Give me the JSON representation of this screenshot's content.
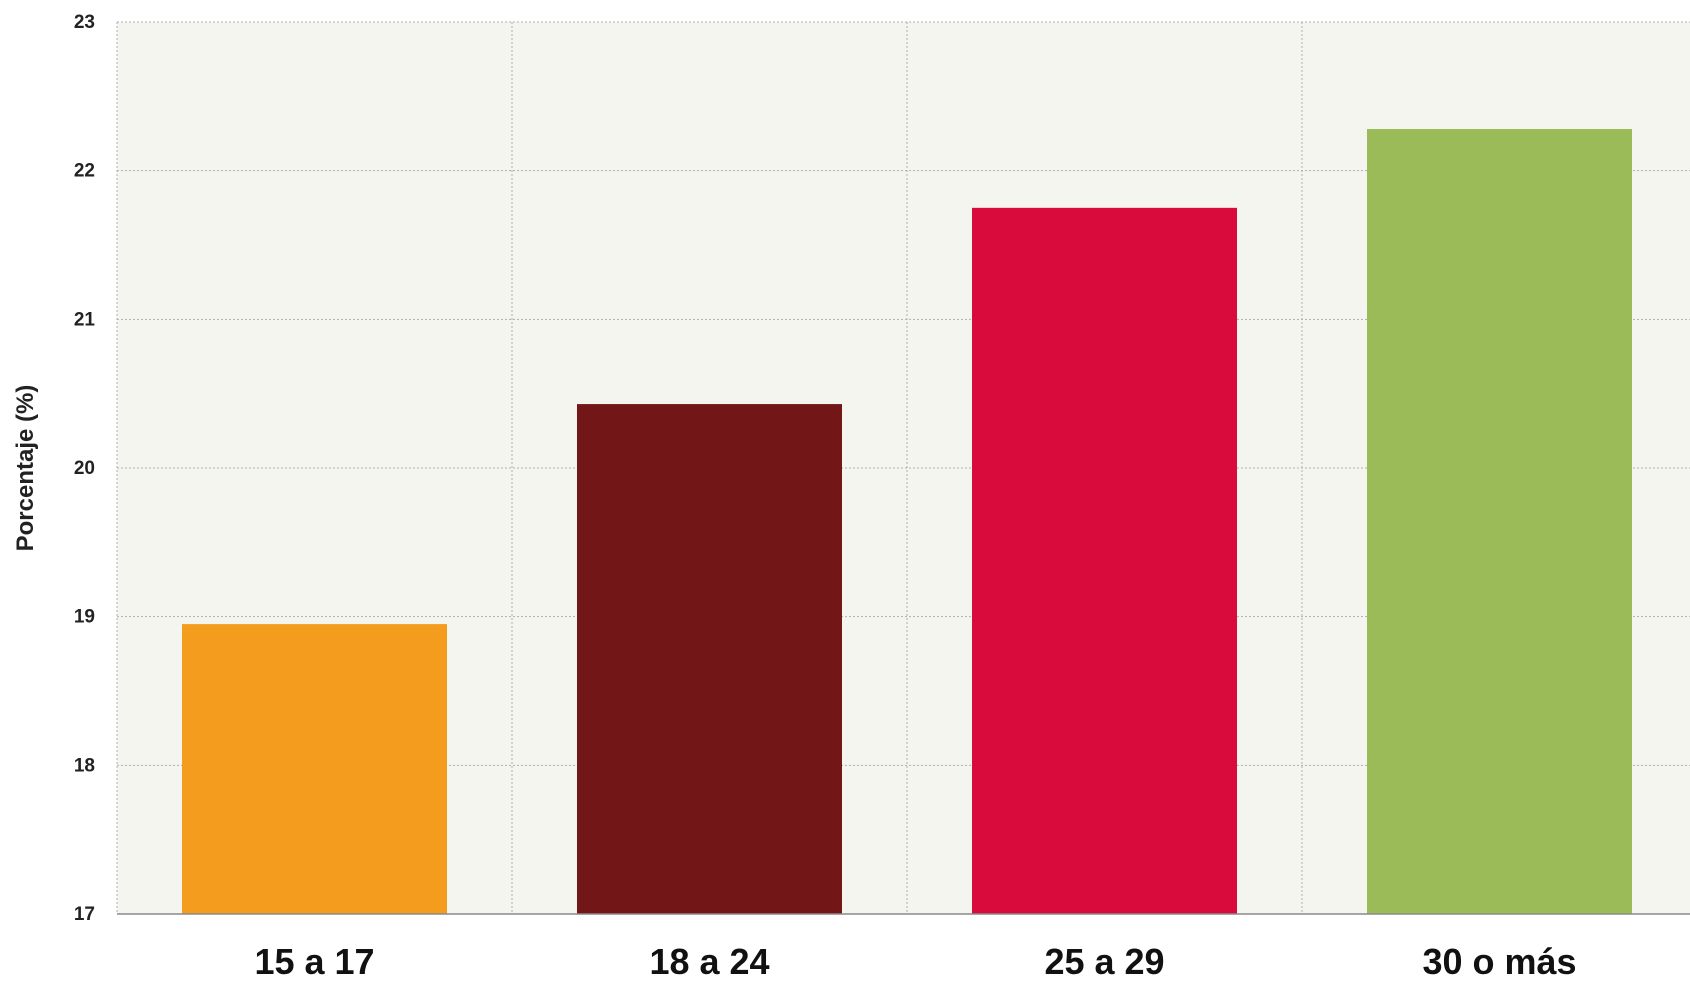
{
  "chart_data": {
    "type": "bar",
    "categories": [
      "15 a 17",
      "18 a 24",
      "25 a 29",
      "30 o más"
    ],
    "values": [
      18.95,
      20.43,
      21.75,
      22.28
    ],
    "colors": [
      "#f39c1e",
      "#721618",
      "#d90a3c",
      "#9bbb59"
    ],
    "title": "",
    "xlabel": "",
    "ylabel": "Porcentaje (%)",
    "ylim": [
      17,
      23
    ],
    "yticks": [
      17,
      18,
      19,
      20,
      21,
      22,
      23
    ],
    "grid": true,
    "plot_background": "#f3f5ee",
    "grid_color": "#b0b0b0"
  }
}
